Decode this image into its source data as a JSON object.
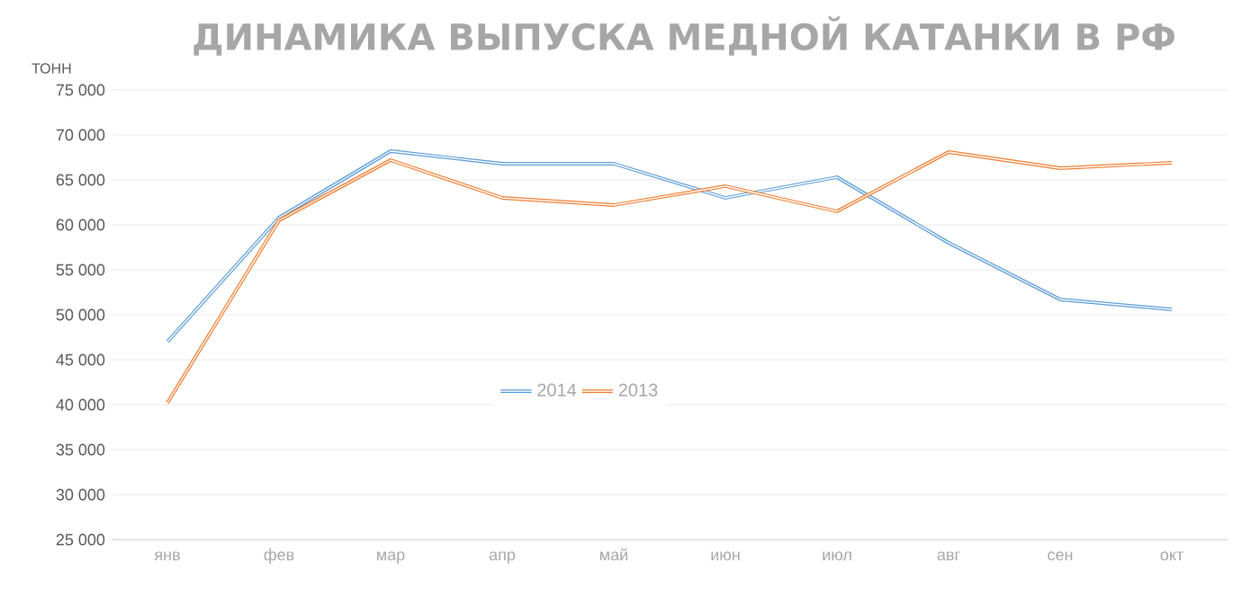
{
  "chart_data": {
    "type": "line",
    "title": "ДИНАМИКА ВЫПУСКА МЕДНОЙ КАТАНКИ В РФ",
    "ylabel": "ТОНН",
    "categories": [
      "янв",
      "фев",
      "мар",
      "апр",
      "май",
      "июн",
      "июл",
      "авг",
      "сен",
      "окт"
    ],
    "series": [
      {
        "name": "2014",
        "color": "#5b9bd5",
        "values": [
          47000,
          60800,
          68200,
          66800,
          66800,
          63000,
          65300,
          58000,
          51700,
          50600
        ]
      },
      {
        "name": "2013",
        "color": "#ed7d31",
        "values": [
          40200,
          60500,
          67200,
          63000,
          62200,
          64300,
          61500,
          68100,
          66300,
          66900
        ]
      }
    ],
    "ylim": [
      25000,
      75000
    ],
    "yticks": [
      {
        "value": 25000,
        "label": "25 000"
      },
      {
        "value": 30000,
        "label": "30 000"
      },
      {
        "value": 35000,
        "label": "35 000"
      },
      {
        "value": 40000,
        "label": "40 000"
      },
      {
        "value": 45000,
        "label": "45 000"
      },
      {
        "value": 50000,
        "label": "50 000"
      },
      {
        "value": 55000,
        "label": "55 000"
      },
      {
        "value": 60000,
        "label": "60 000"
      },
      {
        "value": 65000,
        "label": "65 000"
      },
      {
        "value": 70000,
        "label": "70 000"
      },
      {
        "value": 75000,
        "label": "75 000"
      }
    ],
    "grid": "y",
    "legend": "center",
    "marker": "none",
    "line_style": "solid"
  }
}
